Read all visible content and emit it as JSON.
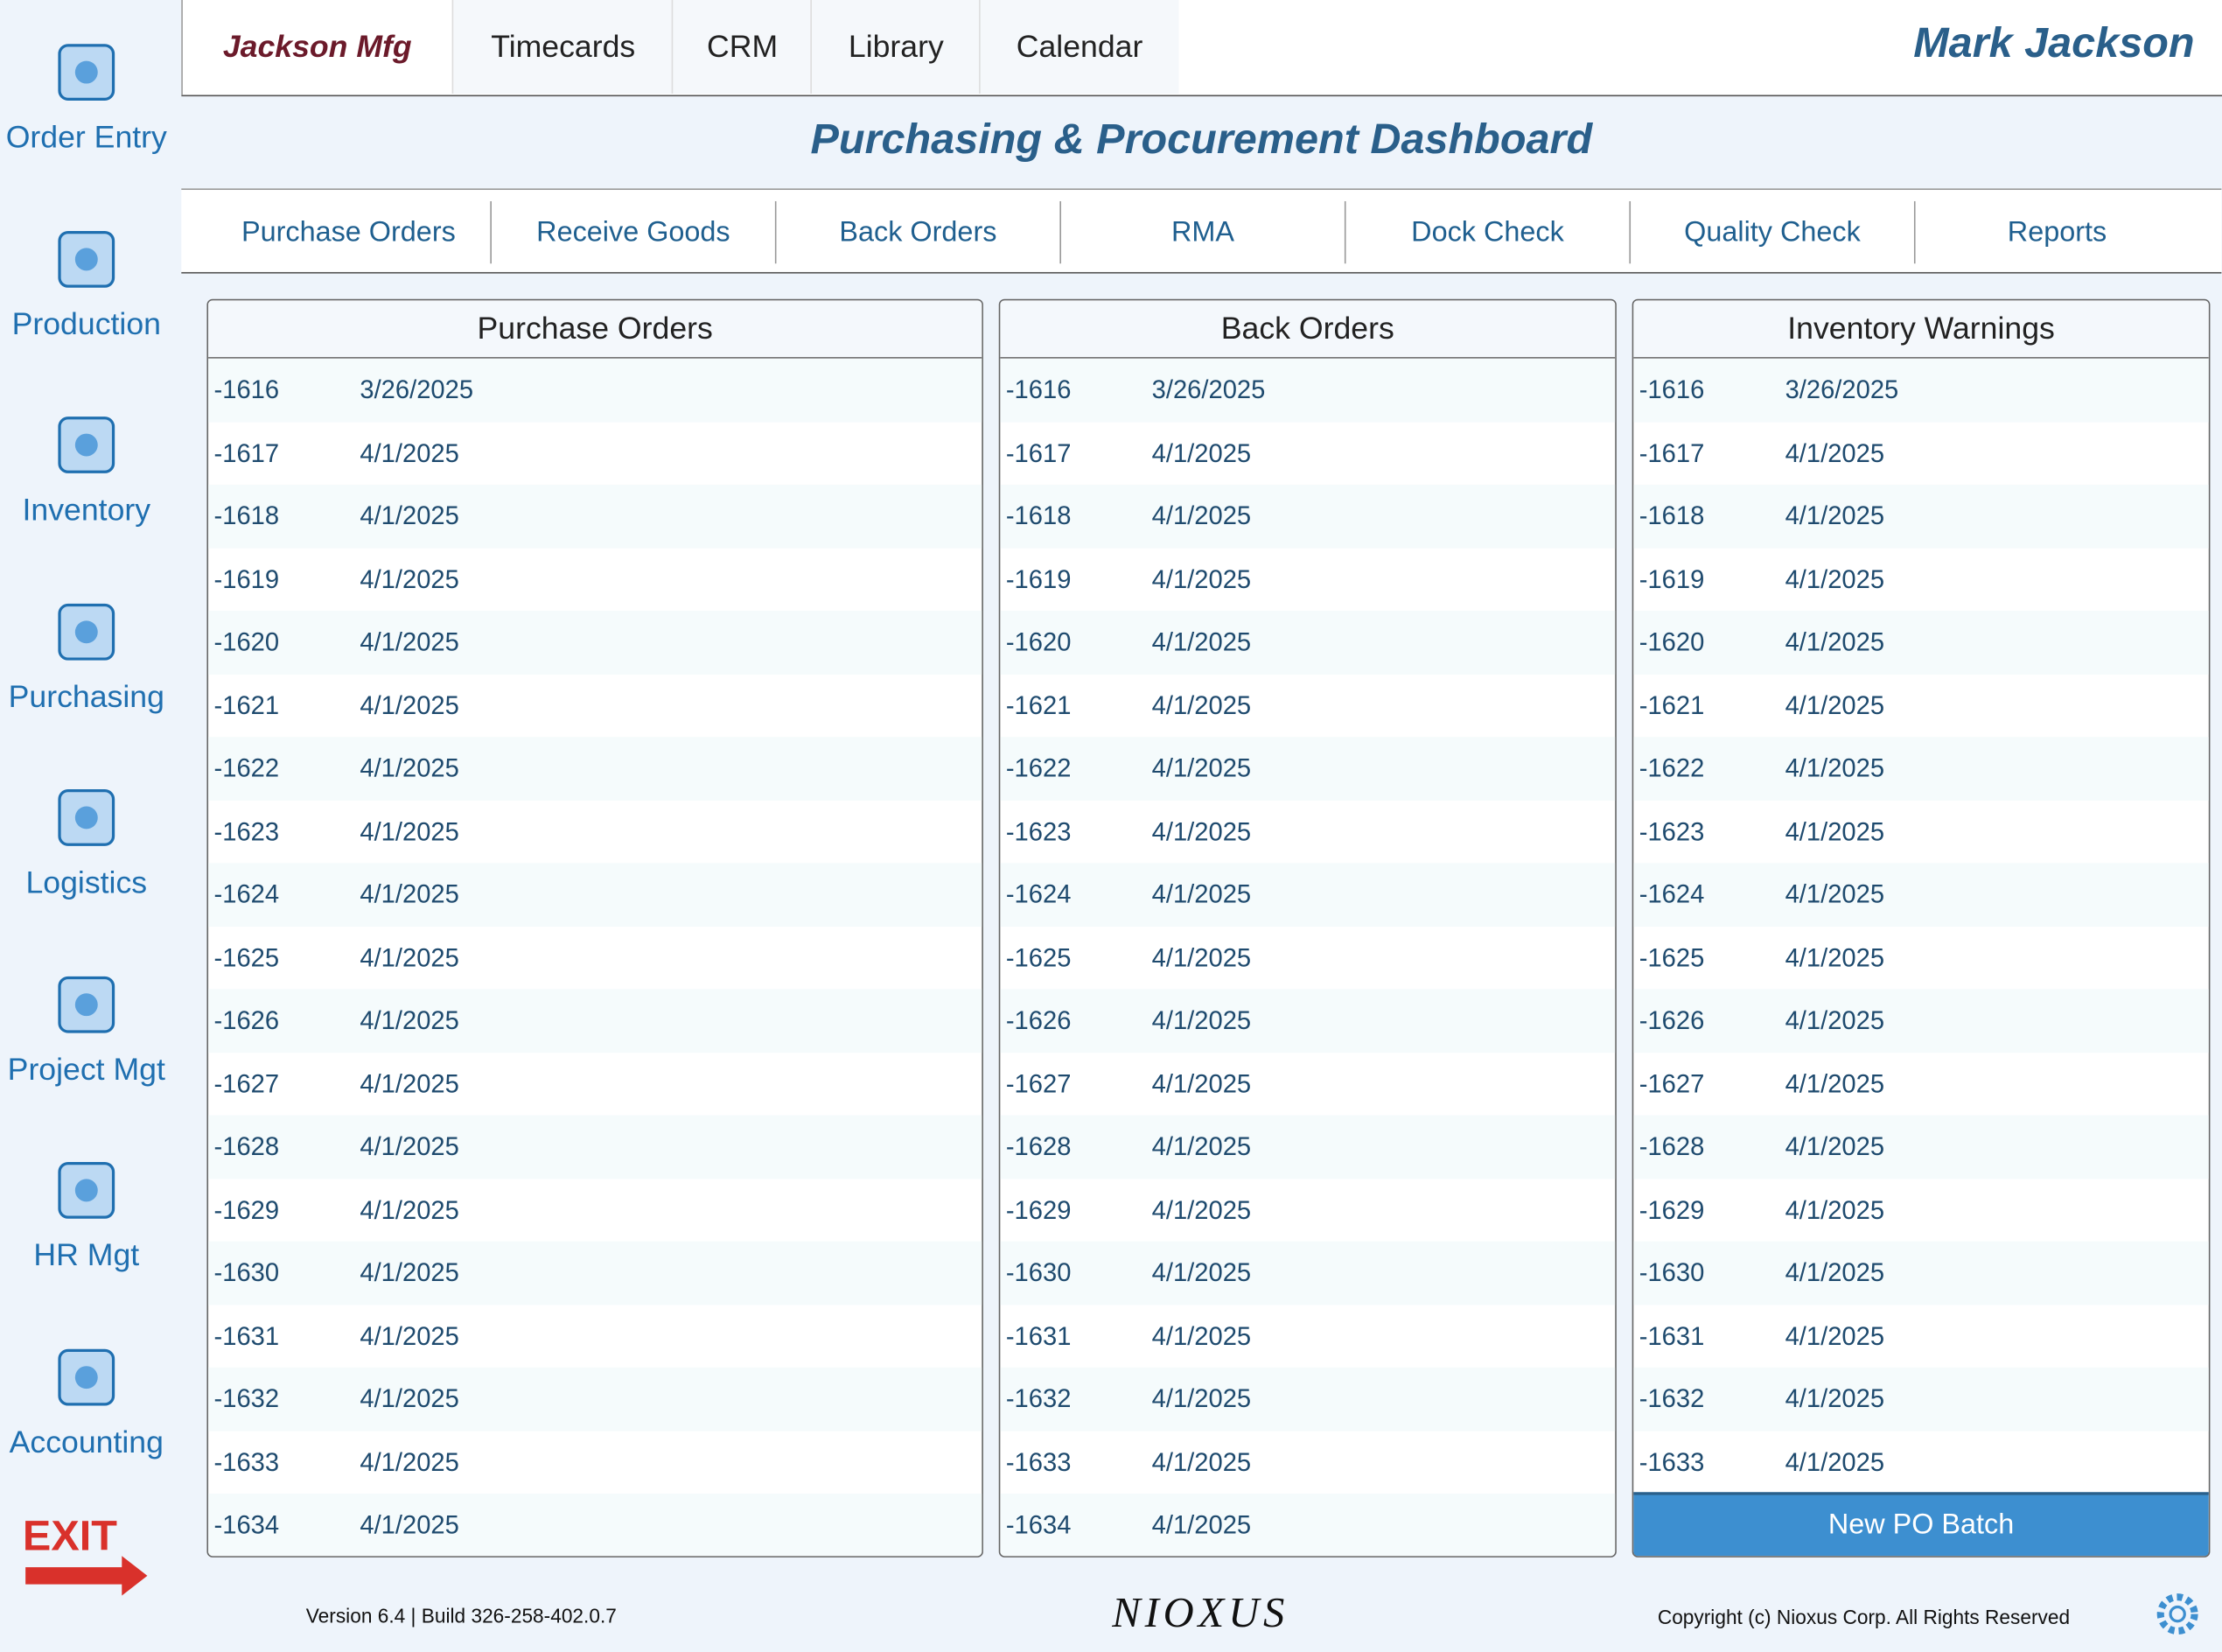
{
  "sidebar": {
    "items": [
      "Order Entry",
      "Production",
      "Inventory",
      "Purchasing",
      "Logistics",
      "Project Mgt",
      "HR Mgt",
      "Accounting"
    ],
    "exit": "EXIT"
  },
  "header": {
    "company": "Jackson Mfg",
    "tabs": [
      "Timecards",
      "CRM",
      "Library",
      "Calendar"
    ],
    "user": "Mark Jackson",
    "title": "Purchasing & Procurement Dashboard"
  },
  "subtabs": [
    "Purchase Orders",
    "Receive Goods",
    "Back Orders",
    "RMA",
    "Dock Check",
    "Quality Check",
    "Reports"
  ],
  "panels": [
    {
      "title": "Purchase Orders",
      "rows": [
        [
          "-1616",
          "3/26/2025"
        ],
        [
          "-1617",
          "4/1/2025"
        ],
        [
          "-1618",
          "4/1/2025"
        ],
        [
          "-1619",
          "4/1/2025"
        ],
        [
          "-1620",
          "4/1/2025"
        ],
        [
          "-1621",
          "4/1/2025"
        ],
        [
          "-1622",
          "4/1/2025"
        ],
        [
          "-1623",
          "4/1/2025"
        ],
        [
          "-1624",
          "4/1/2025"
        ],
        [
          "-1625",
          "4/1/2025"
        ],
        [
          "-1626",
          "4/1/2025"
        ],
        [
          "-1627",
          "4/1/2025"
        ],
        [
          "-1628",
          "4/1/2025"
        ],
        [
          "-1629",
          "4/1/2025"
        ],
        [
          "-1630",
          "4/1/2025"
        ],
        [
          "-1631",
          "4/1/2025"
        ],
        [
          "-1632",
          "4/1/2025"
        ],
        [
          "-1633",
          "4/1/2025"
        ],
        [
          "-1634",
          "4/1/2025"
        ]
      ]
    },
    {
      "title": "Back Orders",
      "rows": [
        [
          "-1616",
          "3/26/2025"
        ],
        [
          "-1617",
          "4/1/2025"
        ],
        [
          "-1618",
          "4/1/2025"
        ],
        [
          "-1619",
          "4/1/2025"
        ],
        [
          "-1620",
          "4/1/2025"
        ],
        [
          "-1621",
          "4/1/2025"
        ],
        [
          "-1622",
          "4/1/2025"
        ],
        [
          "-1623",
          "4/1/2025"
        ],
        [
          "-1624",
          "4/1/2025"
        ],
        [
          "-1625",
          "4/1/2025"
        ],
        [
          "-1626",
          "4/1/2025"
        ],
        [
          "-1627",
          "4/1/2025"
        ],
        [
          "-1628",
          "4/1/2025"
        ],
        [
          "-1629",
          "4/1/2025"
        ],
        [
          "-1630",
          "4/1/2025"
        ],
        [
          "-1631",
          "4/1/2025"
        ],
        [
          "-1632",
          "4/1/2025"
        ],
        [
          "-1633",
          "4/1/2025"
        ],
        [
          "-1634",
          "4/1/2025"
        ]
      ]
    },
    {
      "title": "Inventory Warnings",
      "rows": [
        [
          "-1616",
          "3/26/2025"
        ],
        [
          "-1617",
          "4/1/2025"
        ],
        [
          "-1618",
          "4/1/2025"
        ],
        [
          "-1619",
          "4/1/2025"
        ],
        [
          "-1620",
          "4/1/2025"
        ],
        [
          "-1621",
          "4/1/2025"
        ],
        [
          "-1622",
          "4/1/2025"
        ],
        [
          "-1623",
          "4/1/2025"
        ],
        [
          "-1624",
          "4/1/2025"
        ],
        [
          "-1625",
          "4/1/2025"
        ],
        [
          "-1626",
          "4/1/2025"
        ],
        [
          "-1627",
          "4/1/2025"
        ],
        [
          "-1628",
          "4/1/2025"
        ],
        [
          "-1629",
          "4/1/2025"
        ],
        [
          "-1630",
          "4/1/2025"
        ],
        [
          "-1631",
          "4/1/2025"
        ],
        [
          "-1632",
          "4/1/2025"
        ],
        [
          "-1633",
          "4/1/2025"
        ]
      ],
      "button": "New PO Batch"
    }
  ],
  "footer": {
    "version": "Version 6.4 |  Build 326-258-402.0.7",
    "logo": "NIOXUS",
    "copyright": "Copyright (c) Nioxus Corp. All Rights Reserved"
  }
}
